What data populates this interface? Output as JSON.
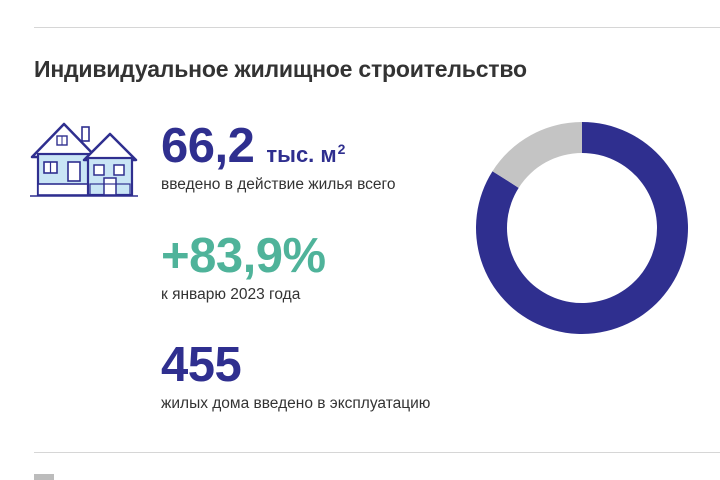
{
  "header": {
    "title": "Индивидуальное жилищное строительство"
  },
  "stats": {
    "area": {
      "value": "66,2",
      "unit": "тыс. м",
      "unit_sup": "2",
      "caption": "введено в действие жилья всего"
    },
    "growth": {
      "value": "+83,9%",
      "caption": "к январю 2023 года"
    },
    "houses": {
      "value": "455",
      "caption": "жилых дома введено в эксплуатацию"
    }
  },
  "colors": {
    "primary": "#2f2f8f",
    "accent": "#4fb39a",
    "secondary": "#c4c4c4"
  },
  "icons": {
    "houses": "houses-icon"
  },
  "chart_data": {
    "type": "pie",
    "style": "donut",
    "slices": [
      {
        "value": 84,
        "color": "#2f2f8f"
      },
      {
        "value": 16,
        "color": "#c4c4c4"
      }
    ]
  }
}
